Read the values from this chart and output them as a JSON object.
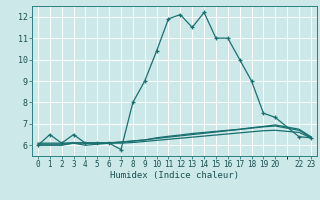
{
  "title": "",
  "xlabel": "Humidex (Indice chaleur)",
  "bg_color": "#cce8e8",
  "grid_color": "#ffffff",
  "line_color": "#1a7070",
  "xlim": [
    -0.5,
    23.5
  ],
  "ylim": [
    5.5,
    12.5
  ],
  "xticks": [
    0,
    1,
    2,
    3,
    4,
    5,
    6,
    7,
    8,
    9,
    10,
    11,
    12,
    13,
    14,
    15,
    16,
    17,
    18,
    19,
    20,
    22,
    23
  ],
  "xtick_labels": [
    "0",
    "1",
    "2",
    "3",
    "4",
    "5",
    "6",
    "7",
    "8",
    "9",
    "10",
    "11",
    "12",
    "13",
    "14",
    "15",
    "16",
    "17",
    "18",
    "19",
    "20",
    "22",
    "23"
  ],
  "yticks": [
    6,
    7,
    8,
    9,
    10,
    11,
    12
  ],
  "series": [
    {
      "x": [
        0,
        1,
        2,
        3,
        4,
        5,
        6,
        7,
        8,
        9,
        10,
        11,
        12,
        13,
        14,
        15,
        16,
        17,
        18,
        19,
        20,
        22,
        23
      ],
      "y": [
        6.0,
        6.5,
        6.1,
        6.5,
        6.1,
        6.1,
        6.1,
        5.8,
        8.0,
        9.0,
        10.4,
        11.9,
        12.1,
        11.5,
        12.2,
        11.0,
        11.0,
        10.0,
        9.0,
        7.5,
        7.3,
        6.4,
        6.35
      ],
      "marker": true
    },
    {
      "x": [
        0,
        1,
        2,
        3,
        4,
        5,
        6,
        7,
        8,
        9,
        10,
        11,
        12,
        13,
        14,
        15,
        16,
        17,
        18,
        19,
        20,
        22,
        23
      ],
      "y": [
        6.0,
        6.0,
        6.0,
        6.1,
        6.0,
        6.05,
        6.1,
        6.15,
        6.2,
        6.25,
        6.35,
        6.42,
        6.48,
        6.55,
        6.6,
        6.65,
        6.7,
        6.75,
        6.82,
        6.88,
        6.95,
        6.75,
        6.4
      ],
      "marker": false
    },
    {
      "x": [
        0,
        1,
        2,
        3,
        4,
        5,
        6,
        7,
        8,
        9,
        10,
        11,
        12,
        13,
        14,
        15,
        16,
        17,
        18,
        19,
        20,
        22,
        23
      ],
      "y": [
        6.05,
        6.05,
        6.05,
        6.1,
        6.1,
        6.1,
        6.12,
        6.15,
        6.2,
        6.25,
        6.32,
        6.38,
        6.44,
        6.5,
        6.56,
        6.62,
        6.68,
        6.74,
        6.8,
        6.86,
        6.9,
        6.7,
        6.38
      ],
      "marker": false
    },
    {
      "x": [
        0,
        1,
        2,
        3,
        4,
        5,
        6,
        7,
        8,
        9,
        10,
        11,
        12,
        13,
        14,
        15,
        16,
        17,
        18,
        19,
        20,
        22,
        23
      ],
      "y": [
        6.1,
        6.1,
        6.1,
        6.12,
        6.12,
        6.12,
        6.1,
        6.1,
        6.13,
        6.18,
        6.23,
        6.28,
        6.33,
        6.38,
        6.43,
        6.48,
        6.53,
        6.58,
        6.63,
        6.68,
        6.7,
        6.6,
        6.35
      ],
      "marker": false
    }
  ]
}
